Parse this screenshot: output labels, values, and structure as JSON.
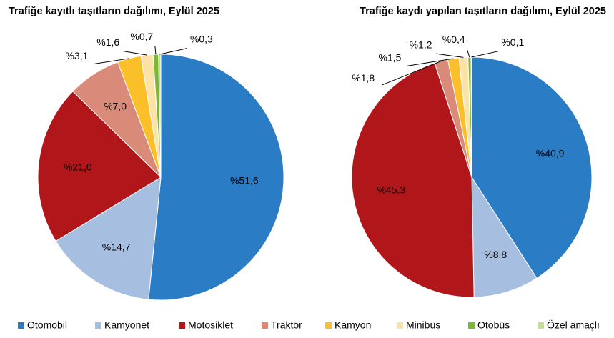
{
  "chart_data": [
    {
      "type": "pie",
      "title": "Trafiğe kayıtlı taşıtların dağılımı, Eylül 2025",
      "categories": [
        "Otomobil",
        "Kamyonet",
        "Motosiklet",
        "Traktör",
        "Kamyon",
        "Minibüs",
        "Otobüs",
        "Özel amaçlı"
      ],
      "colors": [
        "#2a7dc4",
        "#a6bfe0",
        "#b0161a",
        "#d98a78",
        "#fbbf2a",
        "#fde2a8",
        "#7bb934",
        "#c8dca0"
      ],
      "values": [
        51.6,
        14.7,
        21.0,
        7.0,
        3.1,
        1.6,
        0.7,
        0.3
      ],
      "value_labels": [
        "%51,6",
        "%14,7",
        "%21,0",
        "%7,0",
        "%3,1",
        "%1,6",
        "%0,7",
        "%0,3"
      ]
    },
    {
      "type": "pie",
      "title": "Trafiğe kaydı yapılan taşıtların dağılımı, Eylül 2025",
      "categories": [
        "Otomobil",
        "Kamyonet",
        "Motosiklet",
        "Traktör",
        "Kamyon",
        "Minibüs",
        "Otobüs",
        "Özel amaçlı"
      ],
      "colors": [
        "#2a7dc4",
        "#a6bfe0",
        "#b0161a",
        "#d98a78",
        "#fbbf2a",
        "#fde2a8",
        "#7bb934",
        "#c8dca0"
      ],
      "values": [
        40.9,
        8.8,
        45.3,
        1.8,
        1.5,
        1.2,
        0.4,
        0.1
      ],
      "value_labels": [
        "%40,9",
        "%8,8",
        "%45,3",
        "%1,8",
        "%1,5",
        "%1,2",
        "%0,4",
        "%0,1"
      ]
    }
  ]
}
